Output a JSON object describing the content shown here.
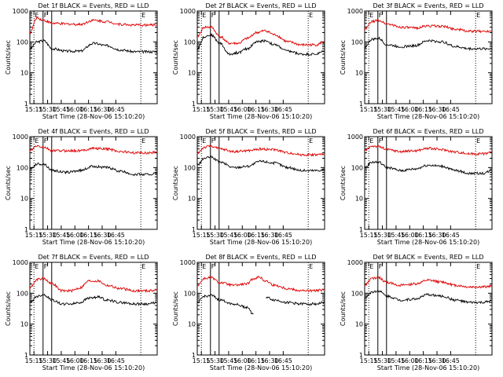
{
  "chart_data": [
    {
      "type": "line",
      "title": "Det 1f BLACK = Events, RED = LLD",
      "xlabel": "Start Time (28-Nov-06 15:10:20)",
      "ylabel": "Counts/sec",
      "yscale": "log",
      "ylim": [
        1,
        1000
      ],
      "xticks": [
        "15:15",
        "15:30",
        "15:45",
        "16:00",
        "16:15",
        "16:30",
        "16:45"
      ],
      "yticks": [
        "1",
        "10",
        "100",
        "1000"
      ],
      "markers": [
        {
          "label": "E",
          "style": "dotted",
          "time_min": 4.5
        },
        {
          "label": "F",
          "style": "solid",
          "time_min": 14.5
        },
        {
          "label": "",
          "style": "solid",
          "time_min": 24
        },
        {
          "label": "E",
          "style": "dotted",
          "time_min": 122
        }
      ],
      "series": [
        {
          "color": "#000000",
          "x_min": [
            0,
            8,
            15,
            25,
            40,
            55,
            70,
            85,
            100,
            115,
            130,
            140
          ],
          "y": [
            60,
            100,
            110,
            60,
            50,
            50,
            90,
            75,
            55,
            48,
            48,
            48
          ]
        },
        {
          "color": "#dd0000",
          "x_min": [
            0,
            8,
            15,
            25,
            40,
            55,
            70,
            85,
            100,
            115,
            130,
            140
          ],
          "y": [
            200,
            600,
            500,
            400,
            380,
            370,
            500,
            450,
            370,
            350,
            350,
            360
          ]
        }
      ]
    },
    {
      "type": "line",
      "title": "Det 2f BLACK = Events, RED = LLD",
      "xlabel": "Start Time (28-Nov-06 15:10:20)",
      "ylabel": "Counts/sec",
      "yscale": "log",
      "ylim": [
        1,
        1000
      ],
      "xticks": [
        "15:15",
        "15:30",
        "15:45",
        "16:00",
        "16:15",
        "16:30",
        "16:45"
      ],
      "yticks": [
        "1",
        "10",
        "100",
        "1000"
      ],
      "markers": [
        {
          "label": "E",
          "style": "dotted",
          "time_min": 4.5
        },
        {
          "label": "F",
          "style": "solid",
          "time_min": 14.5
        },
        {
          "label": "",
          "style": "solid",
          "time_min": 24
        },
        {
          "label": "E",
          "style": "dotted",
          "time_min": 122
        }
      ],
      "series": [
        {
          "color": "#000000",
          "x_min": [
            0,
            8,
            15,
            25,
            35,
            45,
            55,
            65,
            75,
            85,
            100,
            115,
            130,
            140
          ],
          "y": [
            60,
            150,
            170,
            90,
            40,
            45,
            60,
            100,
            110,
            80,
            50,
            40,
            40,
            50
          ]
        },
        {
          "color": "#dd0000",
          "x_min": [
            0,
            8,
            15,
            25,
            35,
            45,
            55,
            65,
            75,
            85,
            100,
            115,
            130,
            140
          ],
          "y": [
            150,
            300,
            300,
            150,
            90,
            90,
            130,
            200,
            230,
            170,
            100,
            80,
            80,
            100
          ]
        }
      ]
    },
    {
      "type": "line",
      "title": "Det 3f BLACK = Events, RED = LLD",
      "xlabel": "Start Time (28-Nov-06 15:10:20)",
      "ylabel": "Counts/sec",
      "yscale": "log",
      "ylim": [
        1,
        1000
      ],
      "xticks": [
        "15:15",
        "15:30",
        "15:45",
        "16:00",
        "16:15",
        "16:30",
        "16:45"
      ],
      "yticks": [
        "1",
        "10",
        "100",
        "1000"
      ],
      "markers": [
        {
          "label": "E",
          "style": "dotted",
          "time_min": 4.5
        },
        {
          "label": "F",
          "style": "solid",
          "time_min": 14.5
        },
        {
          "label": "",
          "style": "solid",
          "time_min": 24
        },
        {
          "label": "E",
          "style": "dotted",
          "time_min": 122
        }
      ],
      "series": [
        {
          "color": "#000000",
          "x_min": [
            0,
            8,
            15,
            25,
            40,
            55,
            70,
            85,
            100,
            115,
            130,
            140
          ],
          "y": [
            70,
            120,
            130,
            80,
            70,
            75,
            110,
            100,
            70,
            60,
            60,
            60
          ]
        },
        {
          "color": "#dd0000",
          "x_min": [
            0,
            8,
            15,
            25,
            40,
            55,
            70,
            85,
            100,
            115,
            130,
            140
          ],
          "y": [
            250,
            450,
            500,
            380,
            300,
            280,
            330,
            320,
            260,
            220,
            220,
            230
          ]
        }
      ]
    },
    {
      "type": "line",
      "title": "Det 4f BLACK = Events, RED = LLD",
      "xlabel": "Start Time (28-Nov-06 15:10:20)",
      "ylabel": "Counts/sec",
      "yscale": "log",
      "ylim": [
        1,
        1000
      ],
      "xticks": [
        "15:15",
        "15:30",
        "15:45",
        "16:00",
        "16:15",
        "16:30",
        "16:45"
      ],
      "yticks": [
        "1",
        "10",
        "100",
        "1000"
      ],
      "markers": [
        {
          "label": "E",
          "style": "dotted",
          "time_min": 4.5
        },
        {
          "label": "F",
          "style": "solid",
          "time_min": 14.5
        },
        {
          "label": "",
          "style": "solid",
          "time_min": 24
        },
        {
          "label": "E",
          "style": "dotted",
          "time_min": 122
        }
      ],
      "series": [
        {
          "color": "#000000",
          "x_min": [
            0,
            8,
            15,
            25,
            40,
            55,
            70,
            85,
            100,
            115,
            130,
            140
          ],
          "y": [
            90,
            130,
            130,
            80,
            70,
            80,
            110,
            100,
            75,
            60,
            60,
            65
          ]
        },
        {
          "color": "#dd0000",
          "x_min": [
            0,
            8,
            15,
            25,
            40,
            55,
            70,
            85,
            100,
            115,
            130,
            140
          ],
          "y": [
            350,
            500,
            450,
            350,
            350,
            350,
            420,
            400,
            330,
            300,
            300,
            320
          ]
        }
      ]
    },
    {
      "type": "line",
      "title": "Det 5f BLACK = Events, RED = LLD",
      "xlabel": "Start Time (28-Nov-06 15:10:20)",
      "ylabel": "Counts/sec",
      "yscale": "log",
      "ylim": [
        1,
        1000
      ],
      "xticks": [
        "15:15",
        "15:30",
        "15:45",
        "16:00",
        "16:15",
        "16:30",
        "16:45"
      ],
      "yticks": [
        "1",
        "10",
        "100",
        "1000"
      ],
      "markers": [
        {
          "label": "E",
          "style": "dotted",
          "time_min": 4.5
        },
        {
          "label": "F",
          "style": "solid",
          "time_min": 14.5
        },
        {
          "label": "",
          "style": "solid",
          "time_min": 24
        },
        {
          "label": "E",
          "style": "dotted",
          "time_min": 122
        }
      ],
      "series": [
        {
          "color": "#000000",
          "x_min": [
            0,
            8,
            15,
            25,
            40,
            55,
            70,
            85,
            100,
            115,
            130,
            140
          ],
          "y": [
            120,
            200,
            220,
            150,
            100,
            110,
            160,
            140,
            100,
            80,
            80,
            85
          ]
        },
        {
          "color": "#dd0000",
          "x_min": [
            0,
            8,
            15,
            25,
            40,
            55,
            70,
            85,
            100,
            115,
            130,
            140
          ],
          "y": [
            300,
            450,
            500,
            400,
            330,
            350,
            400,
            380,
            300,
            260,
            260,
            270
          ]
        }
      ]
    },
    {
      "type": "line",
      "title": "Det 6f BLACK = Events, RED = LLD",
      "xlabel": "Start Time (28-Nov-06 15:10:20)",
      "ylabel": "Counts/sec",
      "yscale": "log",
      "ylim": [
        1,
        1000
      ],
      "xticks": [
        "15:15",
        "15:30",
        "15:45",
        "16:00",
        "16:15",
        "16:30",
        "16:45"
      ],
      "yticks": [
        "1",
        "10",
        "100",
        "1000"
      ],
      "markers": [
        {
          "label": "E",
          "style": "dotted",
          "time_min": 4.5
        },
        {
          "label": "F",
          "style": "solid",
          "time_min": 14.5
        },
        {
          "label": "",
          "style": "solid",
          "time_min": 24
        },
        {
          "label": "E",
          "style": "dotted",
          "time_min": 122
        }
      ],
      "series": [
        {
          "color": "#000000",
          "x_min": [
            0,
            8,
            15,
            25,
            40,
            55,
            70,
            85,
            100,
            115,
            130,
            140
          ],
          "y": [
            100,
            150,
            150,
            100,
            80,
            90,
            120,
            110,
            80,
            65,
            65,
            80
          ]
        },
        {
          "color": "#dd0000",
          "x_min": [
            0,
            8,
            15,
            25,
            40,
            55,
            70,
            85,
            100,
            115,
            130,
            140
          ],
          "y": [
            350,
            500,
            480,
            380,
            330,
            350,
            420,
            380,
            320,
            280,
            280,
            320
          ]
        }
      ]
    },
    {
      "type": "line",
      "title": "Det 7f BLACK = Events, RED = LLD",
      "xlabel": "Start Time (28-Nov-06 15:10:20)",
      "ylabel": "Counts/sec",
      "yscale": "log",
      "ylim": [
        1,
        1000
      ],
      "xticks": [
        "15:15",
        "15:30",
        "15:45",
        "16:00",
        "16:15",
        "16:30",
        "16:45"
      ],
      "yticks": [
        "1",
        "10",
        "100",
        "1000"
      ],
      "markers": [
        {
          "label": "E",
          "style": "dotted",
          "time_min": 4.5
        },
        {
          "label": "F",
          "style": "solid",
          "time_min": 14.5
        },
        {
          "label": "",
          "style": "solid",
          "time_min": 24
        },
        {
          "label": "E",
          "style": "dotted",
          "time_min": 122
        }
      ],
      "series": [
        {
          "color": "#000000",
          "x_min": [
            0,
            8,
            15,
            25,
            35,
            45,
            55,
            65,
            75,
            85,
            100,
            115,
            130,
            140
          ],
          "y": [
            50,
            80,
            90,
            60,
            45,
            45,
            50,
            70,
            75,
            60,
            50,
            45,
            45,
            50
          ]
        },
        {
          "color": "#dd0000",
          "x_min": [
            0,
            8,
            15,
            25,
            35,
            45,
            55,
            65,
            75,
            85,
            100,
            115,
            130,
            140
          ],
          "y": [
            150,
            280,
            300,
            200,
            120,
            120,
            150,
            250,
            250,
            180,
            140,
            120,
            120,
            130
          ]
        }
      ]
    },
    {
      "type": "line",
      "title": "Det 8f BLACK = Events, RED = LLD",
      "xlabel": "Start Time (28-Nov-06 15:10:20)",
      "ylabel": "Counts/sec",
      "yscale": "log",
      "ylim": [
        1,
        1000
      ],
      "xticks": [
        "15:15",
        "15:30",
        "15:45",
        "16:00",
        "16:15",
        "16:30",
        "16:45"
      ],
      "yticks": [
        "1",
        "10",
        "100",
        "1000"
      ],
      "markers": [
        {
          "label": "E",
          "style": "dotted",
          "time_min": 4.5
        },
        {
          "label": "F",
          "style": "solid",
          "time_min": 14.5
        },
        {
          "label": "",
          "style": "solid",
          "time_min": 24
        },
        {
          "label": "E",
          "style": "dotted",
          "time_min": 122
        }
      ],
      "series": [
        {
          "color": "#000000",
          "x_min": [
            0,
            8,
            15,
            25,
            40,
            55,
            62,
            68,
            75,
            85,
            100,
            115,
            130,
            140
          ],
          "y": [
            50,
            80,
            85,
            60,
            45,
            35,
            20,
            null,
            75,
            60,
            50,
            45,
            45,
            50
          ]
        },
        {
          "color": "#dd0000",
          "x_min": [
            0,
            8,
            15,
            25,
            40,
            55,
            62,
            68,
            75,
            85,
            100,
            115,
            130,
            140
          ],
          "y": [
            180,
            300,
            320,
            220,
            180,
            200,
            300,
            330,
            250,
            180,
            140,
            120,
            120,
            130
          ]
        }
      ]
    },
    {
      "type": "line",
      "title": "Det 9f BLACK = Events, RED = LLD",
      "xlabel": "Start Time (28-Nov-06 15:10:20)",
      "ylabel": "Counts/sec",
      "yscale": "log",
      "ylim": [
        1,
        1000
      ],
      "xticks": [
        "15:15",
        "15:30",
        "15:45",
        "16:00",
        "16:15",
        "16:30",
        "16:45"
      ],
      "yticks": [
        "1",
        "10",
        "100",
        "1000"
      ],
      "markers": [
        {
          "label": "E",
          "style": "dotted",
          "time_min": 4.5
        },
        {
          "label": "F",
          "style": "solid",
          "time_min": 14.5
        },
        {
          "label": "",
          "style": "solid",
          "time_min": 24
        },
        {
          "label": "E",
          "style": "dotted",
          "time_min": 122
        }
      ],
      "series": [
        {
          "color": "#000000",
          "x_min": [
            0,
            8,
            15,
            25,
            40,
            55,
            70,
            85,
            100,
            115,
            130,
            140
          ],
          "y": [
            70,
            110,
            120,
            80,
            60,
            65,
            90,
            80,
            60,
            50,
            50,
            55
          ]
        },
        {
          "color": "#dd0000",
          "x_min": [
            0,
            8,
            15,
            25,
            40,
            55,
            70,
            85,
            100,
            115,
            130,
            140
          ],
          "y": [
            180,
            300,
            320,
            220,
            180,
            200,
            260,
            230,
            180,
            160,
            160,
            170
          ]
        }
      ]
    }
  ]
}
